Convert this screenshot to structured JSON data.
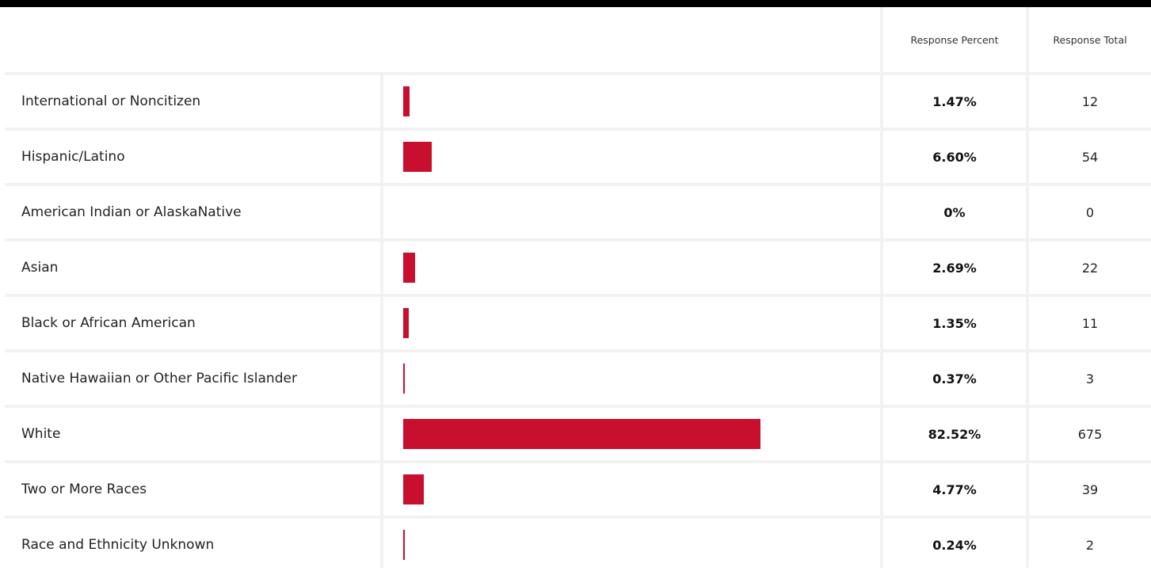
{
  "accent_color": "#c8102e",
  "headers": {
    "percent": "Response Percent",
    "total": "Response Total"
  },
  "chart_data": {
    "type": "bar",
    "orientation": "horizontal",
    "categories": [
      "International or Noncitizen",
      "Hispanic/Latino",
      "American Indian or AlaskaNative",
      "Asian",
      "Black or African American",
      "Native Hawaiian or Other Pacific Islander",
      "White",
      "Two or More Races",
      "Race and Ethnicity Unknown"
    ],
    "values": [
      1.47,
      6.6,
      0,
      2.69,
      1.35,
      0.37,
      82.52,
      4.77,
      0.24
    ],
    "xlim": [
      0,
      100
    ]
  },
  "rows": [
    {
      "label": "International or Noncitizen",
      "percent": "1.47%",
      "total": "12"
    },
    {
      "label": "Hispanic/Latino",
      "percent": "6.60%",
      "total": "54"
    },
    {
      "label": "American Indian or AlaskaNative",
      "percent": "0%",
      "total": "0"
    },
    {
      "label": "Asian",
      "percent": "2.69%",
      "total": "22"
    },
    {
      "label": "Black or African American",
      "percent": "1.35%",
      "total": "11"
    },
    {
      "label": "Native Hawaiian or Other Pacific Islander",
      "percent": "0.37%",
      "total": "3"
    },
    {
      "label": "White",
      "percent": "82.52%",
      "total": "675"
    },
    {
      "label": "Two or More Races",
      "percent": "4.77%",
      "total": "39"
    },
    {
      "label": "Race and Ethnicity Unknown",
      "percent": "0.24%",
      "total": "2"
    }
  ]
}
